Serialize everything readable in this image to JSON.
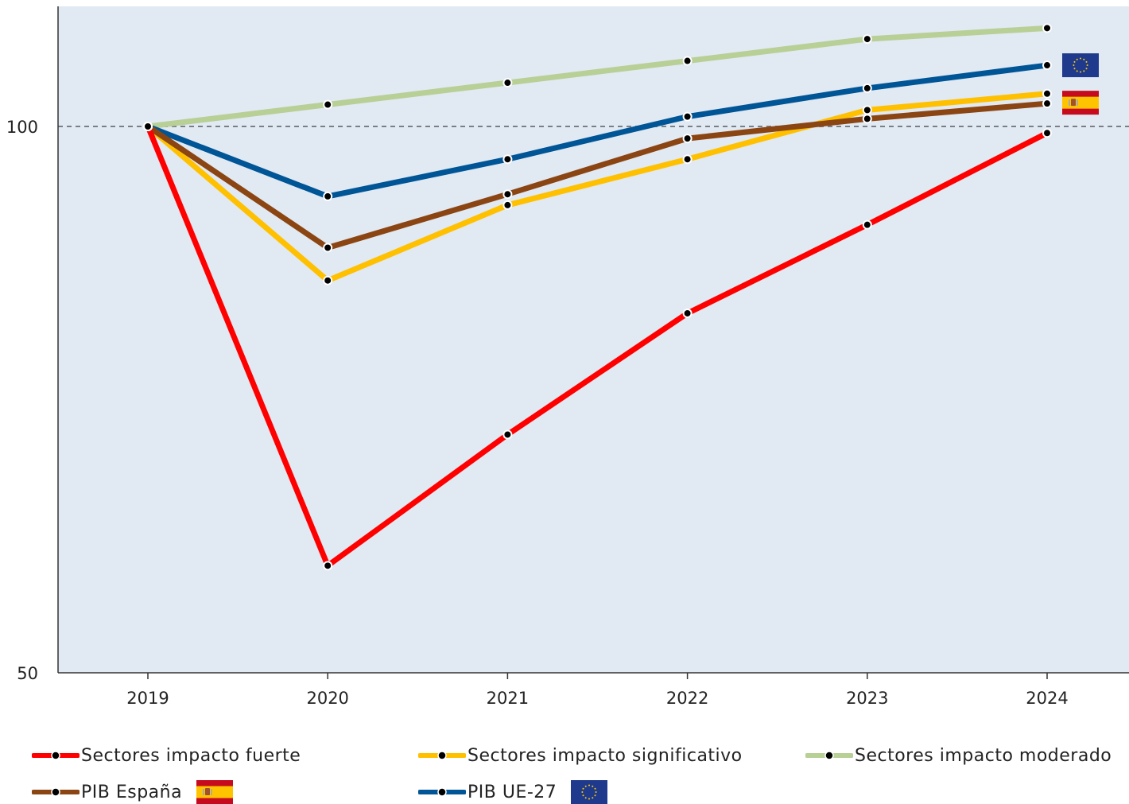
{
  "chart_data": {
    "type": "line",
    "x": [
      "2019",
      "2020",
      "2021",
      "2022",
      "2023",
      "2024"
    ],
    "yticks": [
      100,
      50
    ],
    "ylim": [
      50,
      112
    ],
    "reference_line": 100,
    "grid": false,
    "legend_position": "bottom",
    "series": [
      {
        "name": "Sectores impacto fuerte",
        "color": "#ff0000",
        "values": [
          100,
          59.8,
          71.8,
          82.9,
          91.0,
          99.4
        ]
      },
      {
        "name": "Sectores impacto significativo",
        "color": "#ffc000",
        "values": [
          100,
          85.9,
          92.8,
          97.0,
          101.5,
          103.0
        ]
      },
      {
        "name": "Sectores impacto moderado",
        "color": "#b8cf96",
        "values": [
          100,
          102.0,
          104.0,
          106.0,
          108.0,
          109.0
        ]
      },
      {
        "name": "PIB España",
        "color": "#8b4513",
        "values": [
          100,
          88.9,
          93.8,
          98.9,
          100.7,
          102.1
        ]
      },
      {
        "name": "PIB UE-27",
        "color": "#005596",
        "values": [
          100,
          93.6,
          97.0,
          100.9,
          103.5,
          105.6
        ]
      }
    ],
    "end_flags": [
      {
        "series": "PIB UE-27",
        "flag": "eu-flag-icon"
      },
      {
        "series": "PIB España",
        "flag": "spain-flag-icon"
      }
    ]
  },
  "legend": [
    {
      "label": "Sectores impacto fuerte",
      "color": "#ff0000",
      "flag": ""
    },
    {
      "label": "Sectores impacto significativo",
      "color": "#ffc000",
      "flag": ""
    },
    {
      "label": "Sectores impacto moderado",
      "color": "#b8cf96",
      "flag": ""
    },
    {
      "label": "PIB España",
      "color": "#8b4513",
      "flag": "spain-flag-icon"
    },
    {
      "label": "PIB UE-27",
      "color": "#005596",
      "flag": "eu-flag-icon"
    }
  ],
  "colors": {
    "plot_background": "#e1e9f2",
    "reference_line": "#7a7f87"
  }
}
